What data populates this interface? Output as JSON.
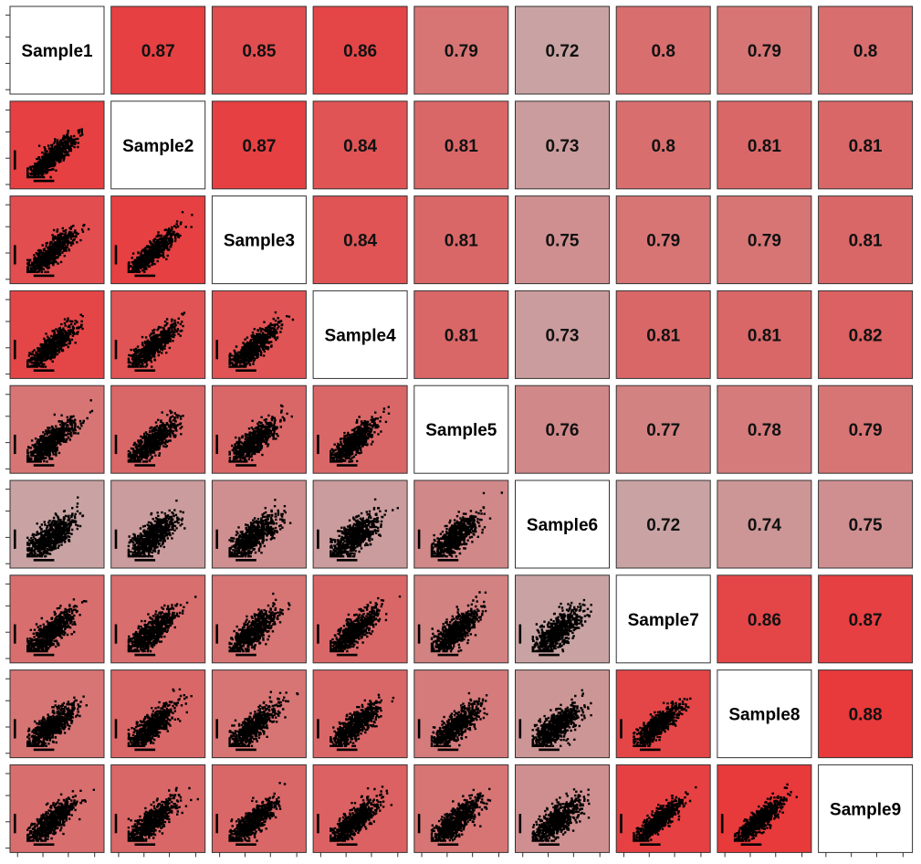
{
  "chart_data": {
    "type": "scatter-matrix",
    "samples": [
      "Sample1",
      "Sample2",
      "Sample3",
      "Sample4",
      "Sample5",
      "Sample6",
      "Sample7",
      "Sample8",
      "Sample9"
    ],
    "correlations": [
      [
        null,
        0.87,
        0.85,
        0.86,
        0.79,
        0.72,
        0.8,
        0.79,
        0.8
      ],
      [
        0.87,
        null,
        0.87,
        0.84,
        0.81,
        0.73,
        0.8,
        0.81,
        0.81
      ],
      [
        0.85,
        0.87,
        null,
        0.84,
        0.81,
        0.75,
        0.79,
        0.79,
        0.81
      ],
      [
        0.86,
        0.84,
        0.84,
        null,
        0.81,
        0.73,
        0.81,
        0.81,
        0.82
      ],
      [
        0.79,
        0.81,
        0.81,
        0.81,
        null,
        0.76,
        0.77,
        0.78,
        0.79
      ],
      [
        0.72,
        0.73,
        0.75,
        0.73,
        0.76,
        null,
        0.72,
        0.74,
        0.75
      ],
      [
        0.8,
        0.8,
        0.79,
        0.81,
        0.77,
        0.72,
        null,
        0.86,
        0.87
      ],
      [
        0.79,
        0.81,
        0.79,
        0.81,
        0.78,
        0.74,
        0.86,
        null,
        0.88
      ],
      [
        0.8,
        0.81,
        0.81,
        0.82,
        0.79,
        0.75,
        0.87,
        0.88,
        null
      ]
    ],
    "upper_panel": "correlation-value",
    "lower_panel": "scatter",
    "diagonal_panel": "sample-name",
    "color_low": "#c9a3a3",
    "color_high": "#e8393b",
    "value_range": [
      0.72,
      0.88
    ]
  }
}
